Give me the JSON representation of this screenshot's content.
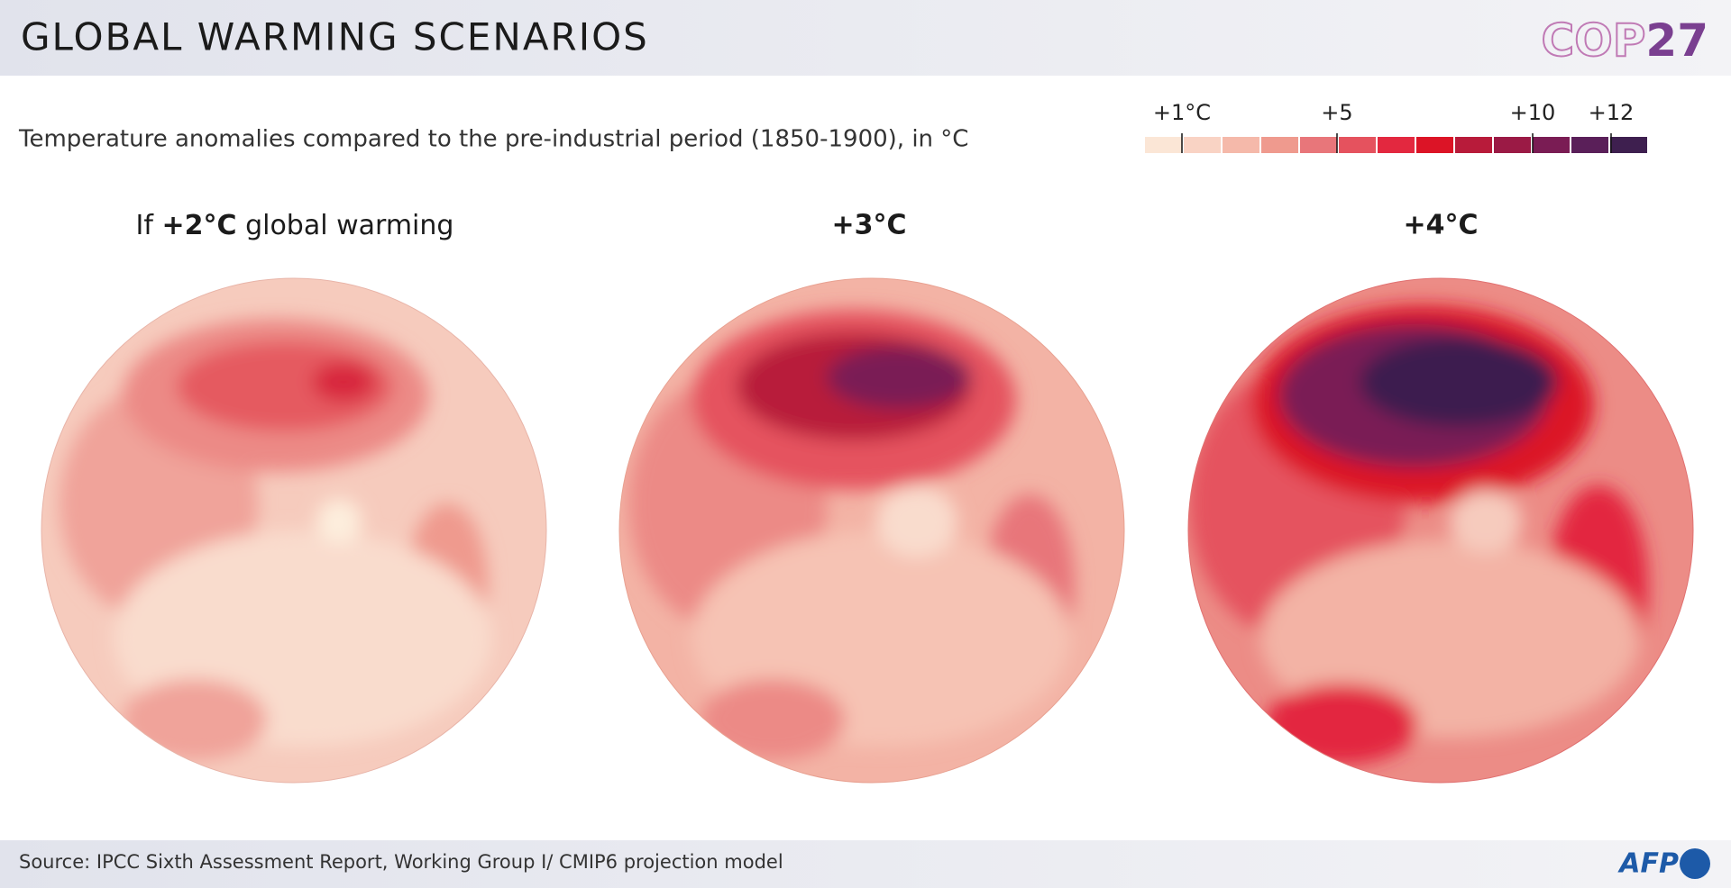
{
  "header": {
    "title": "GLOBAL WARMING SCENARIOS",
    "logo": {
      "text": "COP",
      "number": "27"
    }
  },
  "subtitle": "Temperature anomalies compared to the pre-industrial period (1850-1900), in °C",
  "legend": {
    "colors": [
      "#fbe6d6",
      "#f9d3c4",
      "#f5b9aa",
      "#ef9a8e",
      "#e8767a",
      "#e5525e",
      "#e3283f",
      "#dc1426",
      "#b81b3a",
      "#9b1a45",
      "#7a1c54",
      "#5a1f59",
      "#3e1f4f"
    ],
    "ticks": [
      "+1°C",
      "+5",
      "+10",
      "+12"
    ]
  },
  "panels": [
    {
      "prefix": "If ",
      "bold": "+2°C",
      "suffix": " global warming"
    },
    {
      "bold": "+3°C"
    },
    {
      "bold": "+4°C"
    }
  ],
  "footer": {
    "source": "Source: IPCC Sixth Assessment Report, Working Group I/ CMIP6 projection model",
    "logo": "AFP"
  }
}
